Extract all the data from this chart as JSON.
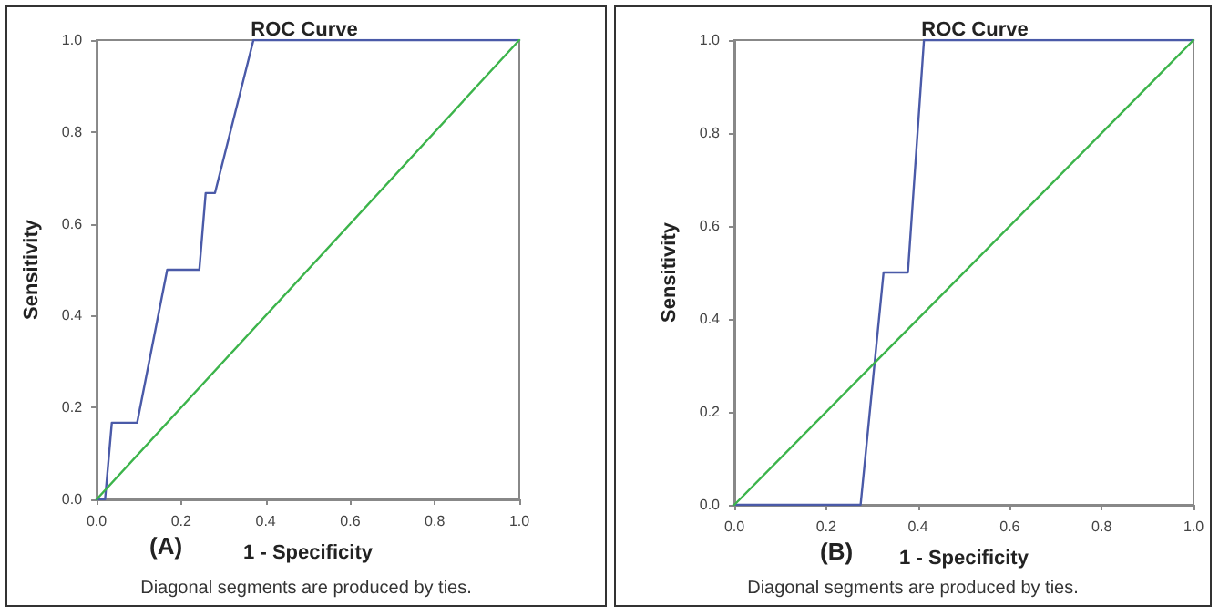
{
  "chart_data": [
    {
      "type": "line",
      "title": "ROC Curve",
      "xlabel": "1 - Specificity",
      "ylabel": "Sensitivity",
      "annotations": [
        "(A)",
        "Diagonal segments are produced by ties."
      ],
      "xlim": [
        0,
        1
      ],
      "ylim": [
        0,
        1
      ],
      "xticks": [
        {
          "value": 0,
          "label": "0.0"
        },
        {
          "value": 0.2,
          "label": "0.2"
        },
        {
          "value": 0.4,
          "label": "0.4"
        },
        {
          "value": 0.6,
          "label": "0.6"
        },
        {
          "value": 0.8,
          "label": "0.8"
        },
        {
          "value": 1,
          "label": "1.0"
        }
      ],
      "yticks": [
        {
          "value": 0,
          "label": "0.0"
        },
        {
          "value": 0.2,
          "label": "0.2"
        },
        {
          "value": 0.4,
          "label": "0.4"
        },
        {
          "value": 0.6,
          "label": "0.6"
        },
        {
          "value": 0.8,
          "label": "0.8"
        },
        {
          "value": 1,
          "label": "1.0"
        }
      ],
      "grid": false,
      "marker": "none",
      "line_style": "solid",
      "series": [
        {
          "color": "#4a5aa8",
          "x": [
            0,
            0.02,
            0.036,
            0.096,
            0.167,
            0.243,
            0.258,
            0.28,
            0.371,
            1
          ],
          "values": [
            0,
            0,
            0.167,
            0.167,
            0.5,
            0.5,
            0.667,
            0.667,
            1,
            1
          ]
        },
        {
          "color": "#3cb44b",
          "x": [
            0,
            1
          ],
          "values": [
            0,
            1
          ]
        }
      ]
    },
    {
      "type": "line",
      "title": "ROC Curve",
      "xlabel": "1 - Specificity",
      "ylabel": "Sensitivity",
      "annotations": [
        "(B)",
        "Diagonal segments are produced by ties."
      ],
      "xlim": [
        0,
        1
      ],
      "ylim": [
        0,
        1
      ],
      "xticks": [
        {
          "value": 0,
          "label": "0.0"
        },
        {
          "value": 0.2,
          "label": "0.2"
        },
        {
          "value": 0.4,
          "label": "0.4"
        },
        {
          "value": 0.6,
          "label": "0.6"
        },
        {
          "value": 0.8,
          "label": "0.8"
        },
        {
          "value": 1,
          "label": "1.0"
        }
      ],
      "yticks": [
        {
          "value": 0,
          "label": "0.0"
        },
        {
          "value": 0.2,
          "label": "0.2"
        },
        {
          "value": 0.4,
          "label": "0.4"
        },
        {
          "value": 0.6,
          "label": "0.6"
        },
        {
          "value": 0.8,
          "label": "0.8"
        },
        {
          "value": 1,
          "label": "1.0"
        }
      ],
      "grid": false,
      "marker": "none",
      "line_style": "solid",
      "series": [
        {
          "color": "#4a5aa8",
          "x": [
            0,
            0.275,
            0.325,
            0.378,
            0.413,
            1
          ],
          "values": [
            0,
            0,
            0.5,
            0.5,
            1,
            1
          ]
        },
        {
          "color": "#3cb44b",
          "x": [
            0,
            1
          ],
          "values": [
            0,
            1
          ]
        }
      ]
    }
  ]
}
